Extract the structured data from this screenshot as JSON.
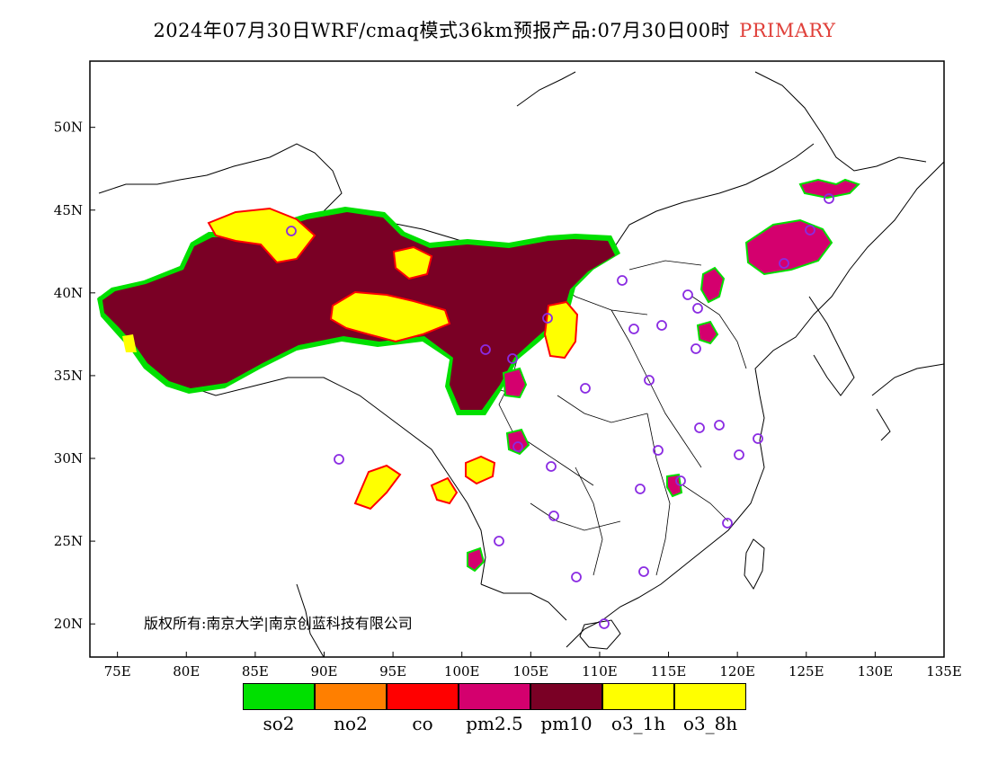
{
  "title": {
    "main": "2024年07月30日WRF/cmaq模式36km预报产品:07月30日00时",
    "tag": "PRIMARY",
    "tag_color": "#e0403a"
  },
  "map": {
    "lat_labels": [
      "50N",
      "45N",
      "40N",
      "35N",
      "30N",
      "25N",
      "20N"
    ],
    "lat_values": [
      50,
      45,
      40,
      35,
      30,
      25,
      20
    ],
    "lon_labels": [
      "75E",
      "80E",
      "85E",
      "90E",
      "95E",
      "100E",
      "105E",
      "110E",
      "115E",
      "120E",
      "125E",
      "130E",
      "135E"
    ],
    "lon_values": [
      75,
      80,
      85,
      90,
      95,
      100,
      105,
      110,
      115,
      120,
      125,
      130,
      135
    ],
    "lon_range": [
      73,
      135
    ],
    "lat_range": [
      18,
      54
    ],
    "copyright": "版权所有:南京大学|南京创蓝科技有限公司",
    "station_marker_color": "#8a2be2"
  },
  "legend": [
    {
      "label": "so2",
      "color": "#00e000"
    },
    {
      "label": "no2",
      "color": "#ff7f00"
    },
    {
      "label": "co",
      "color": "#ff0000"
    },
    {
      "label": "pm2.5",
      "color": "#d4006e"
    },
    {
      "label": "pm10",
      "color": "#7a0025"
    },
    {
      "label": "o3_1h",
      "color": "#ffff00"
    },
    {
      "label": "o3_8h",
      "color": "#ffff00"
    }
  ]
}
